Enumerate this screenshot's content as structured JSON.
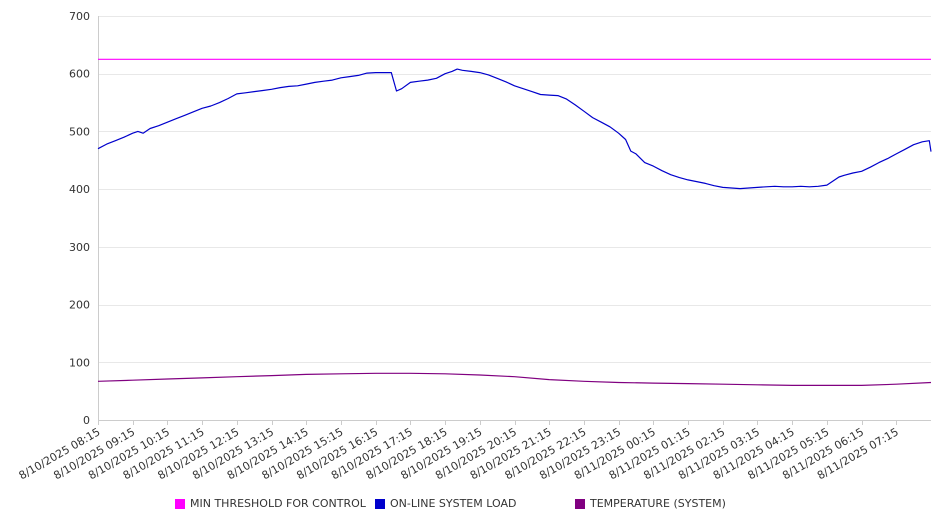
{
  "chart_data": {
    "type": "line",
    "ylim": [
      0,
      700
    ],
    "yticks": [
      0,
      100,
      200,
      300,
      400,
      500,
      600,
      700
    ],
    "grid": true,
    "legend_position": "bottom",
    "categories": [
      "8/10/2025 08:15",
      "8/10/2025 09:15",
      "8/10/2025 10:15",
      "8/10/2025 11:15",
      "8/10/2025 12:15",
      "8/10/2025 13:15",
      "8/10/2025 14:15",
      "8/10/2025 15:15",
      "8/10/2025 16:15",
      "8/10/2025 17:15",
      "8/10/2025 18:15",
      "8/10/2025 19:15",
      "8/10/2025 20:15",
      "8/10/2025 21:15",
      "8/10/2025 22:15",
      "8/10/2025 23:15",
      "8/11/2025 00:15",
      "8/11/2025 01:15",
      "8/11/2025 02:15",
      "8/11/2025 03:15",
      "8/11/2025 04:15",
      "8/11/2025 05:15",
      "8/11/2025 06:15",
      "8/11/2025 07:15"
    ],
    "series": [
      {
        "name": "MIN THRESHOLD FOR CONTROL",
        "color": "#ff00ff",
        "points": [
          [
            0,
            625
          ],
          [
            24,
            625
          ]
        ]
      },
      {
        "name": "ON-LINE SYSTEM LOAD",
        "color": "#0000cc",
        "points": [
          [
            0,
            470
          ],
          [
            0.25,
            478
          ],
          [
            0.5,
            484
          ],
          [
            0.75,
            490
          ],
          [
            1,
            497
          ],
          [
            1.15,
            500
          ],
          [
            1.3,
            497
          ],
          [
            1.5,
            505
          ],
          [
            1.75,
            510
          ],
          [
            2,
            516
          ],
          [
            2.25,
            522
          ],
          [
            2.5,
            528
          ],
          [
            2.75,
            534
          ],
          [
            3,
            540
          ],
          [
            3.25,
            544
          ],
          [
            3.5,
            550
          ],
          [
            3.75,
            557
          ],
          [
            4,
            565
          ],
          [
            4.25,
            567
          ],
          [
            4.5,
            569
          ],
          [
            4.75,
            571
          ],
          [
            5,
            573
          ],
          [
            5.25,
            576
          ],
          [
            5.5,
            578
          ],
          [
            5.75,
            579
          ],
          [
            6,
            582
          ],
          [
            6.25,
            585
          ],
          [
            6.5,
            587
          ],
          [
            6.75,
            589
          ],
          [
            7,
            593
          ],
          [
            7.25,
            595
          ],
          [
            7.5,
            597
          ],
          [
            7.75,
            601
          ],
          [
            8,
            602
          ],
          [
            8.3,
            602
          ],
          [
            8.45,
            602
          ],
          [
            8.6,
            570
          ],
          [
            8.75,
            574
          ],
          [
            9,
            585
          ],
          [
            9.25,
            587
          ],
          [
            9.5,
            589
          ],
          [
            9.75,
            592
          ],
          [
            10,
            600
          ],
          [
            10.2,
            604
          ],
          [
            10.35,
            608
          ],
          [
            10.5,
            606
          ],
          [
            10.75,
            604
          ],
          [
            11,
            602
          ],
          [
            11.25,
            598
          ],
          [
            11.5,
            592
          ],
          [
            11.75,
            586
          ],
          [
            12,
            579
          ],
          [
            12.25,
            574
          ],
          [
            12.5,
            569
          ],
          [
            12.75,
            564
          ],
          [
            13,
            563
          ],
          [
            13.25,
            562
          ],
          [
            13.5,
            556
          ],
          [
            13.75,
            546
          ],
          [
            14,
            535
          ],
          [
            14.25,
            524
          ],
          [
            14.5,
            516
          ],
          [
            14.75,
            508
          ],
          [
            15,
            497
          ],
          [
            15.2,
            486
          ],
          [
            15.35,
            466
          ],
          [
            15.5,
            461
          ],
          [
            15.75,
            446
          ],
          [
            16,
            440
          ],
          [
            16.25,
            432
          ],
          [
            16.5,
            425
          ],
          [
            16.75,
            420
          ],
          [
            17,
            416
          ],
          [
            17.25,
            413
          ],
          [
            17.5,
            410
          ],
          [
            17.75,
            406
          ],
          [
            18,
            403
          ],
          [
            18.25,
            402
          ],
          [
            18.5,
            401
          ],
          [
            18.75,
            402
          ],
          [
            19,
            403
          ],
          [
            19.25,
            404
          ],
          [
            19.5,
            405
          ],
          [
            19.75,
            404
          ],
          [
            20,
            404
          ],
          [
            20.25,
            405
          ],
          [
            20.5,
            404
          ],
          [
            20.75,
            405
          ],
          [
            21,
            407
          ],
          [
            21.2,
            415
          ],
          [
            21.35,
            421
          ],
          [
            21.5,
            424
          ],
          [
            21.75,
            428
          ],
          [
            22,
            431
          ],
          [
            22.25,
            438
          ],
          [
            22.5,
            446
          ],
          [
            22.75,
            453
          ],
          [
            23,
            461
          ],
          [
            23.25,
            469
          ],
          [
            23.5,
            477
          ],
          [
            23.75,
            482
          ],
          [
            23.95,
            484
          ],
          [
            24,
            465
          ]
        ]
      },
      {
        "name": "TEMPERATURE (SYSTEM)",
        "color": "#800080",
        "points": [
          [
            0,
            67
          ],
          [
            1,
            69
          ],
          [
            2,
            71
          ],
          [
            3,
            73
          ],
          [
            4,
            75
          ],
          [
            5,
            77
          ],
          [
            6,
            79
          ],
          [
            7,
            80
          ],
          [
            8,
            81
          ],
          [
            9,
            81
          ],
          [
            10,
            80
          ],
          [
            11,
            78
          ],
          [
            12,
            75
          ],
          [
            13,
            70
          ],
          [
            14,
            67
          ],
          [
            15,
            65
          ],
          [
            16,
            64
          ],
          [
            17,
            63
          ],
          [
            18,
            62
          ],
          [
            19,
            61
          ],
          [
            20,
            60
          ],
          [
            21,
            60
          ],
          [
            22,
            60
          ],
          [
            23,
            62
          ],
          [
            24,
            65
          ]
        ]
      }
    ]
  }
}
